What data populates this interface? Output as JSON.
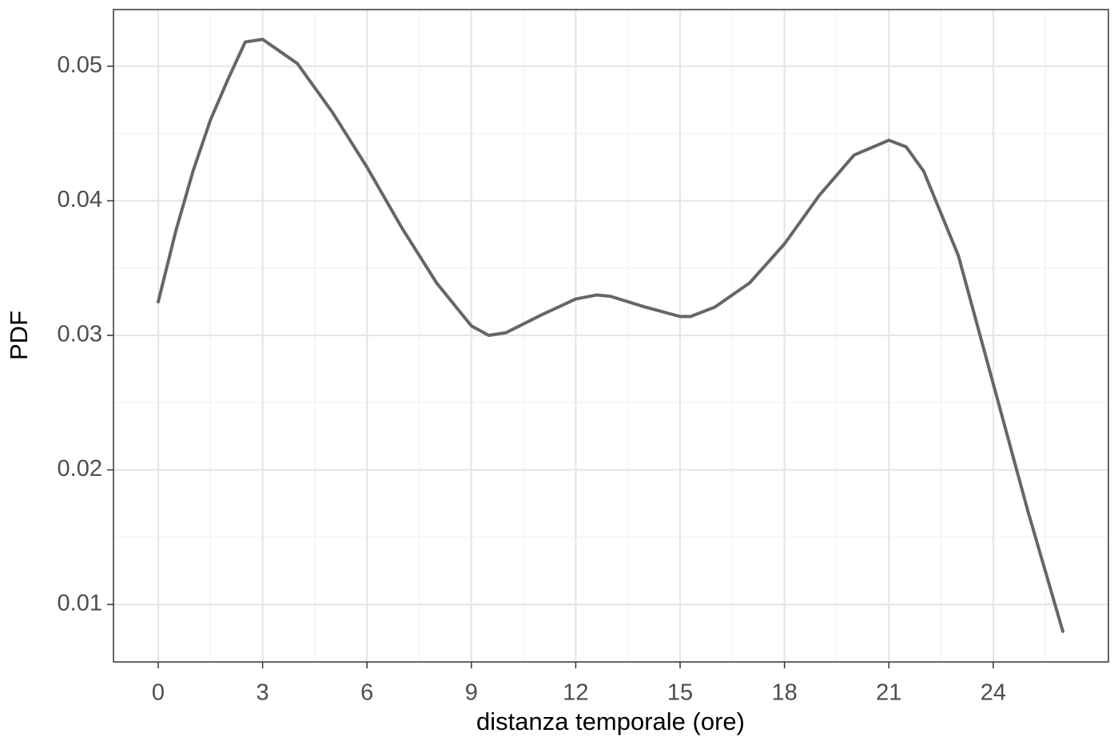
{
  "chart_data": {
    "type": "line",
    "x_label": "distanza temporale (ore)",
    "y_label": "PDF",
    "x": [
      0,
      0.5,
      1,
      1.5,
      2,
      2.5,
      3,
      4,
      5,
      6,
      7,
      8,
      9,
      9.5,
      10,
      11,
      12,
      12.6,
      13,
      14,
      15,
      15.3,
      16,
      17,
      18,
      19,
      20,
      21,
      21.5,
      22,
      23,
      24,
      25,
      26
    ],
    "series": [
      {
        "color": "#666666",
        "values": [
          0.0325,
          0.0377,
          0.0422,
          0.046,
          0.049,
          0.0518,
          0.052,
          0.0502,
          0.0466,
          0.0425,
          0.038,
          0.0339,
          0.0307,
          0.03,
          0.0302,
          0.0315,
          0.0327,
          0.033,
          0.0329,
          0.0321,
          0.0314,
          0.0314,
          0.0321,
          0.0339,
          0.0368,
          0.0404,
          0.0434,
          0.0445,
          0.044,
          0.0422,
          0.0359,
          0.0264,
          0.0169,
          0.008
        ]
      }
    ],
    "xlim": [
      -1.286,
      27.31
    ],
    "ylim": [
      0.005727,
      0.05421
    ],
    "xticks": [
      0,
      3,
      6,
      9,
      12,
      15,
      18,
      21,
      24
    ],
    "yticks": [
      0.01,
      0.02,
      0.03,
      0.04,
      0.05
    ],
    "grid": true,
    "minor_grid": true
  }
}
